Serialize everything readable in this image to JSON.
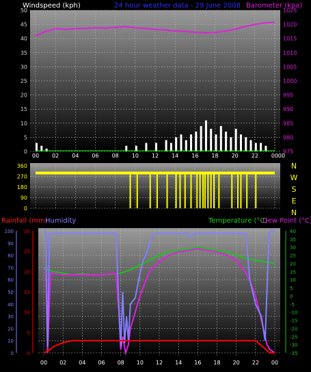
{
  "header": {
    "windspeed_label": "Windspeed (kph)",
    "title": "24 hour weather data - 29 June 2008",
    "barometer_label": "Barometer (kpa)"
  },
  "colors": {
    "wind": "#ffffff",
    "gust_baseline": "#00ff00",
    "barometer": "#e020e0",
    "direction": "#ffff00",
    "rainfall": "#ff0000",
    "humidity": "#8080ff",
    "temperature": "#20c020",
    "dew_point": "#e020e0",
    "text_left": "#d0d0d0"
  },
  "time_ticks": [
    "00",
    "02",
    "04",
    "06",
    "08",
    "10",
    "12",
    "14",
    "16",
    "18",
    "20",
    "22",
    "00",
    "00"
  ],
  "chart_data": [
    {
      "type": "bar",
      "name": "wind",
      "y_left": {
        "label": "Windspeed (kph)",
        "ticks": [
          "50",
          "45",
          "40",
          "35",
          "30",
          "25",
          "20",
          "15",
          "10",
          "5",
          "0"
        ],
        "range": [
          0,
          50
        ]
      },
      "y_right": {
        "label": "Barometer (kpa)",
        "ticks": [
          "1025",
          "1020",
          "1015",
          "1010",
          "1005",
          "1000",
          "995",
          "990",
          "985",
          "980",
          "975"
        ],
        "range": [
          975,
          1025
        ]
      },
      "x_range_hours": [
        0,
        24
      ],
      "barometer_series": {
        "hours": [
          0,
          1,
          2,
          3,
          4,
          5,
          6,
          7,
          8,
          9,
          10,
          11,
          12,
          13,
          14,
          15,
          16,
          17,
          18,
          19,
          20,
          21,
          22,
          23,
          24
        ],
        "values": [
          1016,
          1017.5,
          1018.5,
          1018.2,
          1018.5,
          1018.6,
          1018.8,
          1018.7,
          1018.9,
          1019.2,
          1018.8,
          1018.6,
          1018.2,
          1018,
          1017.7,
          1017.5,
          1017.2,
          1017.0,
          1017.1,
          1017.6,
          1018.3,
          1019.2,
          1020.0,
          1020.5,
          1020.8
        ]
      },
      "wind_series": {
        "hours": [
          0,
          0.5,
          1,
          9,
          10,
          11,
          12,
          13,
          13.5,
          14,
          14.5,
          15,
          15.5,
          16,
          16.5,
          17,
          17.5,
          18,
          18.5,
          19,
          19.5,
          20,
          20.5,
          21,
          21.5,
          22,
          22.5,
          23
        ],
        "values": [
          3,
          2,
          1,
          2,
          2,
          3,
          3,
          4,
          3,
          5,
          6,
          4,
          6,
          7,
          9,
          11,
          8,
          6,
          9,
          7,
          5,
          8,
          6,
          5,
          4,
          3,
          3,
          2
        ]
      }
    },
    {
      "type": "scatter",
      "name": "wind_direction",
      "y_left_ticks": [
        "360",
        "270",
        "180",
        "90",
        "0"
      ],
      "y_right_ticks": [
        "N",
        "W",
        "S",
        "E",
        "N"
      ],
      "range": [
        0,
        360
      ],
      "baseline_deg": 290,
      "drops_hours": [
        9.5,
        10.2,
        11.5,
        12.2,
        13.2,
        14.1,
        14.5,
        15.0,
        15.6,
        16.2,
        16.5,
        16.8,
        17.0,
        17.3,
        17.6,
        17.9,
        18.4,
        19.7,
        20.3,
        20.6,
        21.2,
        22.1
      ]
    },
    {
      "type": "line",
      "name": "environment",
      "left_labels": {
        "rainfall": "Rainfall (mm)",
        "humidity": "Humidity"
      },
      "right_labels": {
        "temperature": "Temperature (°C)",
        "dew_point": "Dew Point (°C)"
      },
      "y_humidity_ticks": [
        "100",
        "90",
        "80",
        "70",
        "60",
        "50",
        "40",
        "30",
        "20",
        "10",
        "0"
      ],
      "y_rain_ticks": [
        "30",
        "25",
        "20",
        "15",
        "10",
        "5",
        "0"
      ],
      "y_temp_ticks": [
        "40",
        "35",
        "30",
        "25",
        "20",
        "15",
        "10",
        "5",
        "0",
        "-5",
        "-10",
        "-15",
        "-20",
        "-25",
        "-30",
        "-35"
      ],
      "humidity_range": [
        0,
        100
      ],
      "rain_range": [
        0,
        30
      ],
      "temp_range": [
        -35,
        40
      ],
      "humidity": {
        "hours": [
          0,
          0.2,
          0.4,
          0.6,
          2,
          4,
          6,
          7.5,
          7.8,
          8.0,
          8.2,
          8.4,
          8.6,
          8.8,
          9,
          9.5,
          10,
          10.3,
          10.6,
          11,
          11.4,
          12,
          13,
          14,
          14.5,
          15,
          15.3,
          15.6,
          16,
          17,
          18,
          19,
          20,
          21,
          21.4,
          22,
          22.6,
          23,
          23.4,
          23.6,
          24
        ],
        "values": [
          100,
          100,
          5,
          98,
          98,
          98,
          98,
          98,
          40,
          5,
          50,
          8,
          30,
          10,
          40,
          45,
          65,
          75,
          80,
          90,
          98,
          98,
          98,
          98,
          98,
          98,
          95,
          98,
          98,
          98,
          98,
          98,
          98,
          98,
          60,
          40,
          30,
          10,
          98,
          100,
          100
        ]
      },
      "temperature": {
        "hours": [
          0,
          1,
          2,
          3,
          4,
          5,
          6,
          7,
          8,
          9,
          10,
          11,
          12,
          13,
          14,
          15,
          16,
          17,
          18,
          19,
          20,
          21,
          22,
          23,
          24
        ],
        "values": [
          17,
          15,
          14,
          13,
          13.5,
          13,
          13,
          13.5,
          14,
          16,
          19,
          22,
          25,
          27,
          28,
          29,
          30,
          29,
          28,
          27,
          25,
          23,
          22,
          21,
          20
        ]
      },
      "dew_point": {
        "hours": [
          0,
          0.2,
          0.4,
          0.7,
          2,
          4,
          6,
          7.5,
          7.8,
          8,
          8.2,
          8.5,
          8.8,
          9,
          9.5,
          10,
          10.5,
          11,
          12,
          13,
          14,
          15,
          16,
          17,
          18,
          19,
          20,
          21,
          21.5,
          22,
          22.5,
          23,
          23.2,
          23.5,
          24
        ],
        "values": [
          16,
          16,
          -35,
          14,
          13,
          13,
          13,
          14,
          -10,
          -33,
          -25,
          -35,
          -30,
          -20,
          -10,
          0,
          8,
          15,
          21,
          25,
          27,
          28,
          29,
          28,
          27,
          25,
          22,
          14,
          8,
          0,
          -12,
          -25,
          -30,
          -33,
          -35
        ]
      },
      "rainfall": {
        "hours": [
          0,
          0.5,
          1,
          1.5,
          2,
          3,
          4,
          6,
          8,
          10,
          12,
          14,
          16,
          18,
          20,
          22,
          23.5,
          24
        ],
        "values": [
          0,
          0.5,
          1.5,
          2,
          2.5,
          3,
          3,
          3,
          3,
          3,
          3,
          3,
          3,
          3,
          3,
          3,
          0,
          0
        ]
      }
    }
  ]
}
